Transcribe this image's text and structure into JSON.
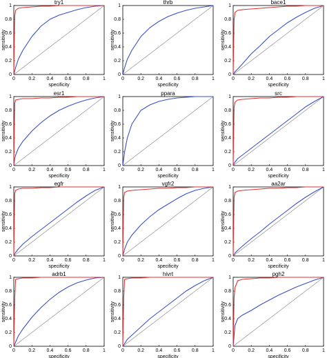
{
  "chart_data": [
    {
      "type": "line",
      "title": "try1",
      "x_label": "specificity",
      "y_label": "sensitivity",
      "x": [
        0,
        0.01,
        0.02,
        0.05,
        0.1,
        0.2,
        0.3,
        0.4,
        0.5,
        0.6,
        0.7,
        0.8,
        0.9,
        1
      ],
      "xlim": [
        0,
        1
      ],
      "ylim": [
        0,
        1
      ],
      "xticks": [
        0,
        0.2,
        0.4,
        0.6,
        0.8,
        1
      ],
      "yticks": [
        0,
        0.2,
        0.4,
        0.6,
        0.8,
        1
      ],
      "series": [
        {
          "color": "#888888",
          "values": [
            0,
            0.01,
            0.02,
            0.05,
            0.1,
            0.2,
            0.3,
            0.4,
            0.5,
            0.6,
            0.7,
            0.8,
            0.9,
            1
          ]
        },
        {
          "color": "#3a4fc8",
          "values": [
            0,
            0.05,
            0.1,
            0.22,
            0.35,
            0.55,
            0.7,
            0.8,
            0.86,
            0.9,
            0.94,
            0.97,
            0.99,
            1
          ]
        },
        {
          "color": "#e03030",
          "values": [
            0,
            0.85,
            0.93,
            0.96,
            0.97,
            0.98,
            0.99,
            0.99,
            1,
            1,
            1,
            1,
            1,
            1
          ]
        }
      ]
    },
    {
      "type": "line",
      "title": "thrb",
      "x_label": "specificity",
      "y_label": "sensitivity",
      "x": [
        0,
        0.01,
        0.02,
        0.05,
        0.1,
        0.2,
        0.3,
        0.4,
        0.5,
        0.6,
        0.7,
        0.8,
        0.9,
        1
      ],
      "xlim": [
        0,
        1
      ],
      "ylim": [
        0,
        1
      ],
      "xticks": [
        0,
        0.2,
        0.4,
        0.6,
        0.8,
        1
      ],
      "yticks": [
        0,
        0.2,
        0.4,
        0.6,
        0.8,
        1
      ],
      "series": [
        {
          "color": "#888888",
          "values": [
            0,
            0.01,
            0.02,
            0.05,
            0.1,
            0.2,
            0.3,
            0.4,
            0.5,
            0.6,
            0.7,
            0.8,
            0.9,
            1
          ]
        },
        {
          "color": "#3a4fc8",
          "values": [
            0,
            0.05,
            0.1,
            0.22,
            0.35,
            0.55,
            0.68,
            0.77,
            0.84,
            0.89,
            0.93,
            0.96,
            0.98,
            1
          ]
        }
      ]
    },
    {
      "type": "line",
      "title": "bace1",
      "x_label": "specificity",
      "y_label": "sensitivity",
      "x": [
        0,
        0.01,
        0.02,
        0.05,
        0.1,
        0.2,
        0.3,
        0.4,
        0.5,
        0.6,
        0.7,
        0.8,
        0.9,
        1
      ],
      "xlim": [
        0,
        1
      ],
      "ylim": [
        0,
        1
      ],
      "xticks": [
        0,
        0.2,
        0.4,
        0.6,
        0.8,
        1
      ],
      "yticks": [
        0,
        0.2,
        0.4,
        0.6,
        0.8,
        1
      ],
      "series": [
        {
          "color": "#888888",
          "values": [
            0,
            0.01,
            0.02,
            0.05,
            0.1,
            0.2,
            0.3,
            0.4,
            0.5,
            0.6,
            0.7,
            0.8,
            0.9,
            1
          ]
        },
        {
          "color": "#3a4fc8",
          "values": [
            0,
            0.02,
            0.04,
            0.08,
            0.15,
            0.3,
            0.42,
            0.55,
            0.65,
            0.75,
            0.83,
            0.9,
            0.96,
            1
          ]
        },
        {
          "color": "#e03030",
          "values": [
            0,
            0.8,
            0.9,
            0.93,
            0.94,
            0.95,
            0.96,
            0.97,
            0.98,
            0.99,
            0.99,
            1,
            1,
            1
          ]
        }
      ]
    },
    {
      "type": "line",
      "title": "esr1",
      "x_label": "specificity",
      "y_label": "sensitivity",
      "x": [
        0,
        0.01,
        0.02,
        0.05,
        0.1,
        0.2,
        0.3,
        0.4,
        0.5,
        0.6,
        0.7,
        0.8,
        0.9,
        1
      ],
      "xlim": [
        0,
        1
      ],
      "ylim": [
        0,
        1
      ],
      "xticks": [
        0,
        0.2,
        0.4,
        0.6,
        0.8,
        1
      ],
      "yticks": [
        0,
        0.2,
        0.4,
        0.6,
        0.8,
        1
      ],
      "series": [
        {
          "color": "#888888",
          "values": [
            0,
            0.01,
            0.02,
            0.05,
            0.1,
            0.2,
            0.3,
            0.4,
            0.5,
            0.6,
            0.7,
            0.8,
            0.9,
            1
          ]
        },
        {
          "color": "#3a4fc8",
          "values": [
            0,
            0.1,
            0.15,
            0.25,
            0.35,
            0.5,
            0.62,
            0.72,
            0.8,
            0.86,
            0.91,
            0.95,
            0.98,
            1
          ]
        },
        {
          "color": "#e03030",
          "values": [
            0,
            0.9,
            0.95,
            0.96,
            0.97,
            0.97,
            0.98,
            0.98,
            0.99,
            0.99,
            1,
            1,
            1,
            1
          ]
        }
      ]
    },
    {
      "type": "line",
      "title": "ppara",
      "x_label": "specificity",
      "y_label": "sensitivity",
      "x": [
        0,
        0.01,
        0.02,
        0.05,
        0.1,
        0.2,
        0.3,
        0.4,
        0.5,
        0.6,
        0.7,
        0.8,
        0.9,
        1
      ],
      "xlim": [
        0,
        1
      ],
      "ylim": [
        0,
        1
      ],
      "xticks": [
        0,
        0.2,
        0.4,
        0.6,
        0.8,
        1
      ],
      "yticks": [
        0,
        0.2,
        0.4,
        0.6,
        0.8,
        1
      ],
      "series": [
        {
          "color": "#888888",
          "values": [
            0,
            0.01,
            0.02,
            0.05,
            0.1,
            0.2,
            0.3,
            0.4,
            0.5,
            0.6,
            0.7,
            0.8,
            0.9,
            1
          ]
        },
        {
          "color": "#3a4fc8",
          "values": [
            0,
            0.1,
            0.2,
            0.4,
            0.6,
            0.8,
            0.88,
            0.93,
            0.96,
            0.98,
            0.99,
            1,
            1,
            1
          ]
        }
      ]
    },
    {
      "type": "line",
      "title": "src",
      "x_label": "specificity",
      "y_label": "sensitivity",
      "x": [
        0,
        0.01,
        0.02,
        0.05,
        0.1,
        0.2,
        0.3,
        0.4,
        0.5,
        0.6,
        0.7,
        0.8,
        0.9,
        1
      ],
      "xlim": [
        0,
        1
      ],
      "ylim": [
        0,
        1
      ],
      "xticks": [
        0,
        0.2,
        0.4,
        0.6,
        0.8,
        1
      ],
      "yticks": [
        0,
        0.2,
        0.4,
        0.6,
        0.8,
        1
      ],
      "series": [
        {
          "color": "#888888",
          "values": [
            0,
            0.01,
            0.02,
            0.05,
            0.1,
            0.2,
            0.3,
            0.4,
            0.5,
            0.6,
            0.7,
            0.8,
            0.9,
            1
          ]
        },
        {
          "color": "#3a4fc8",
          "values": [
            0,
            0.03,
            0.05,
            0.1,
            0.15,
            0.25,
            0.35,
            0.45,
            0.55,
            0.65,
            0.75,
            0.85,
            0.93,
            1
          ]
        },
        {
          "color": "#e03030",
          "values": [
            0,
            0.85,
            0.92,
            0.95,
            0.96,
            0.97,
            0.98,
            0.98,
            0.99,
            0.99,
            1,
            1,
            1,
            1
          ]
        }
      ]
    },
    {
      "type": "line",
      "title": "egfr",
      "x_label": "specificity",
      "y_label": "sensitivity",
      "x": [
        0,
        0.01,
        0.02,
        0.05,
        0.1,
        0.2,
        0.3,
        0.4,
        0.5,
        0.6,
        0.7,
        0.8,
        0.9,
        1
      ],
      "xlim": [
        0,
        1
      ],
      "ylim": [
        0,
        1
      ],
      "xticks": [
        0,
        0.2,
        0.4,
        0.6,
        0.8,
        1
      ],
      "yticks": [
        0,
        0.2,
        0.4,
        0.6,
        0.8,
        1
      ],
      "series": [
        {
          "color": "#888888",
          "values": [
            0,
            0.01,
            0.02,
            0.05,
            0.1,
            0.2,
            0.3,
            0.4,
            0.5,
            0.6,
            0.7,
            0.8,
            0.9,
            1
          ]
        },
        {
          "color": "#3a4fc8",
          "values": [
            0,
            0.03,
            0.05,
            0.1,
            0.17,
            0.28,
            0.38,
            0.48,
            0.58,
            0.68,
            0.78,
            0.87,
            0.95,
            1
          ]
        },
        {
          "color": "#e03030",
          "values": [
            0,
            0.9,
            0.95,
            0.97,
            0.98,
            0.98,
            0.99,
            0.99,
            1,
            1,
            1,
            1,
            1,
            1
          ]
        }
      ]
    },
    {
      "type": "line",
      "title": "vgfr2",
      "x_label": "specificity",
      "y_label": "sensitivity",
      "x": [
        0,
        0.01,
        0.02,
        0.05,
        0.1,
        0.2,
        0.3,
        0.4,
        0.5,
        0.6,
        0.7,
        0.8,
        0.9,
        1
      ],
      "xlim": [
        0,
        1
      ],
      "ylim": [
        0,
        1
      ],
      "xticks": [
        0,
        0.2,
        0.4,
        0.6,
        0.8,
        1
      ],
      "yticks": [
        0,
        0.2,
        0.4,
        0.6,
        0.8,
        1
      ],
      "series": [
        {
          "color": "#888888",
          "values": [
            0,
            0.01,
            0.02,
            0.05,
            0.1,
            0.2,
            0.3,
            0.4,
            0.5,
            0.6,
            0.7,
            0.8,
            0.9,
            1
          ]
        },
        {
          "color": "#3a4fc8",
          "values": [
            0,
            0.05,
            0.1,
            0.2,
            0.3,
            0.45,
            0.57,
            0.67,
            0.75,
            0.83,
            0.9,
            0.95,
            0.98,
            1
          ]
        },
        {
          "color": "#e03030",
          "values": [
            0,
            0.85,
            0.92,
            0.94,
            0.95,
            0.96,
            0.97,
            0.98,
            0.98,
            0.99,
            0.99,
            1,
            1,
            1
          ]
        }
      ]
    },
    {
      "type": "line",
      "title": "aa2ar",
      "x_label": "specificity",
      "y_label": "sensitivity",
      "x": [
        0,
        0.01,
        0.02,
        0.05,
        0.1,
        0.2,
        0.3,
        0.4,
        0.5,
        0.6,
        0.7,
        0.8,
        0.9,
        1
      ],
      "xlim": [
        0,
        1
      ],
      "ylim": [
        0,
        1
      ],
      "xticks": [
        0,
        0.2,
        0.4,
        0.6,
        0.8,
        1
      ],
      "yticks": [
        0,
        0.2,
        0.4,
        0.6,
        0.8,
        1
      ],
      "series": [
        {
          "color": "#888888",
          "values": [
            0,
            0.01,
            0.02,
            0.05,
            0.1,
            0.2,
            0.3,
            0.4,
            0.5,
            0.6,
            0.7,
            0.8,
            0.9,
            1
          ]
        },
        {
          "color": "#3a4fc8",
          "values": [
            0,
            0.02,
            0.04,
            0.08,
            0.14,
            0.25,
            0.35,
            0.46,
            0.56,
            0.66,
            0.76,
            0.85,
            0.93,
            1
          ]
        },
        {
          "color": "#e03030",
          "values": [
            0,
            0.85,
            0.92,
            0.94,
            0.95,
            0.96,
            0.97,
            0.98,
            0.98,
            0.99,
            0.99,
            1,
            1,
            1
          ]
        }
      ]
    },
    {
      "type": "line",
      "title": "adrb1",
      "x_label": "specificity",
      "y_label": "sensitivity",
      "x": [
        0,
        0.01,
        0.02,
        0.05,
        0.1,
        0.2,
        0.3,
        0.4,
        0.5,
        0.6,
        0.7,
        0.8,
        0.9,
        1
      ],
      "xlim": [
        0,
        1
      ],
      "ylim": [
        0,
        1
      ],
      "xticks": [
        0,
        0.2,
        0.4,
        0.6,
        0.8,
        1
      ],
      "yticks": [
        0,
        0.2,
        0.4,
        0.6,
        0.8,
        1
      ],
      "series": [
        {
          "color": "#888888",
          "values": [
            0,
            0.01,
            0.02,
            0.05,
            0.1,
            0.2,
            0.3,
            0.4,
            0.5,
            0.6,
            0.7,
            0.8,
            0.9,
            1
          ]
        },
        {
          "color": "#3a4fc8",
          "values": [
            0,
            0.03,
            0.06,
            0.15,
            0.25,
            0.42,
            0.56,
            0.68,
            0.78,
            0.86,
            0.92,
            0.96,
            0.99,
            1
          ]
        },
        {
          "color": "#e03030",
          "values": [
            0,
            0.7,
            0.97,
            0.98,
            0.99,
            0.99,
            1,
            1,
            1,
            1,
            1,
            1,
            1,
            1
          ]
        }
      ]
    },
    {
      "type": "line",
      "title": "hivrt",
      "x_label": "specificity",
      "y_label": "sensitivity",
      "x": [
        0,
        0.01,
        0.02,
        0.05,
        0.1,
        0.2,
        0.3,
        0.4,
        0.5,
        0.6,
        0.7,
        0.8,
        0.9,
        1
      ],
      "xlim": [
        0,
        1
      ],
      "ylim": [
        0,
        1
      ],
      "xticks": [
        0,
        0.2,
        0.4,
        0.6,
        0.8,
        1
      ],
      "yticks": [
        0,
        0.2,
        0.4,
        0.6,
        0.8,
        1
      ],
      "series": [
        {
          "color": "#888888",
          "values": [
            0,
            0.01,
            0.02,
            0.05,
            0.1,
            0.2,
            0.3,
            0.4,
            0.5,
            0.6,
            0.7,
            0.8,
            0.9,
            1
          ]
        },
        {
          "color": "#3a4fc8",
          "values": [
            0,
            0.02,
            0.04,
            0.1,
            0.16,
            0.28,
            0.4,
            0.5,
            0.6,
            0.7,
            0.8,
            0.88,
            0.95,
            1
          ]
        },
        {
          "color": "#e03030",
          "values": [
            0,
            0.7,
            0.97,
            0.98,
            0.99,
            0.99,
            1,
            1,
            1,
            1,
            1,
            1,
            1,
            1
          ]
        }
      ]
    },
    {
      "type": "line",
      "title": "pgh2",
      "x_label": "specificity",
      "y_label": "sensitivity",
      "x": [
        0,
        0.01,
        0.02,
        0.05,
        0.1,
        0.2,
        0.3,
        0.4,
        0.5,
        0.6,
        0.7,
        0.8,
        0.9,
        1
      ],
      "xlim": [
        0,
        1
      ],
      "ylim": [
        0,
        1
      ],
      "xticks": [
        0,
        0.2,
        0.4,
        0.6,
        0.8,
        1
      ],
      "yticks": [
        0,
        0.2,
        0.4,
        0.6,
        0.8,
        1
      ],
      "series": [
        {
          "color": "#888888",
          "values": [
            0,
            0.01,
            0.02,
            0.05,
            0.1,
            0.2,
            0.3,
            0.4,
            0.5,
            0.6,
            0.7,
            0.8,
            0.9,
            1
          ]
        },
        {
          "color": "#3a4fc8",
          "values": [
            0,
            0.15,
            0.3,
            0.4,
            0.45,
            0.52,
            0.6,
            0.67,
            0.74,
            0.8,
            0.86,
            0.91,
            0.96,
            1
          ]
        },
        {
          "color": "#e03030",
          "values": [
            0,
            0.7,
            0.85,
            0.95,
            0.97,
            0.98,
            0.99,
            0.99,
            1,
            1,
            1,
            1,
            1,
            1
          ]
        }
      ]
    }
  ]
}
